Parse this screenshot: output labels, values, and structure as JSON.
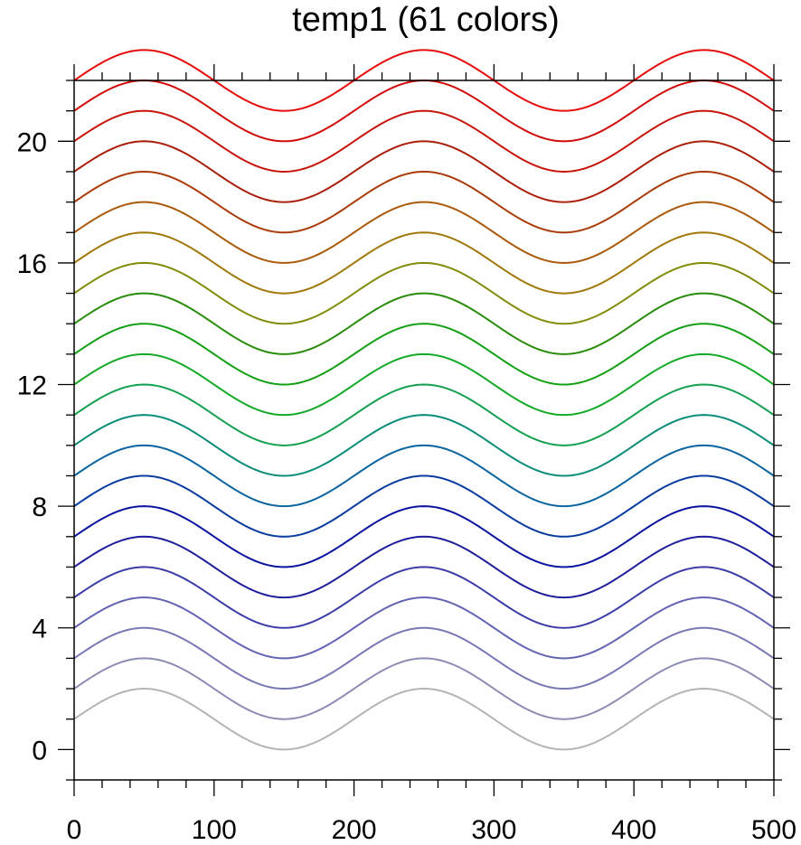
{
  "chart_data": {
    "type": "line",
    "title": "temp1 (61 colors)",
    "xlabel": "",
    "ylabel": "",
    "xlim": [
      0,
      500
    ],
    "ylim": [
      -1,
      22
    ],
    "grid": false,
    "x_ticks": [
      0,
      100,
      200,
      300,
      400,
      500
    ],
    "y_ticks": [
      0,
      4,
      8,
      12,
      16,
      20
    ],
    "x_minor_step": 20,
    "y_minor_step": 1,
    "curve_formula": "y = offset + sin(2*pi*(x - 0)/200) ; peaks at x=50,250,450, troughs at x=150,350",
    "amplitude": 1,
    "period": 200,
    "series": [
      {
        "offset": 1,
        "color": "#b4b4b4"
      },
      {
        "offset": 2,
        "color": "#8c8cb4"
      },
      {
        "offset": 3,
        "color": "#7878b4"
      },
      {
        "offset": 4,
        "color": "#6464b4"
      },
      {
        "offset": 5,
        "color": "#3c3ca8"
      },
      {
        "offset": 6,
        "color": "#1e1e9c"
      },
      {
        "offset": 7,
        "color": "#0a14a0"
      },
      {
        "offset": 8,
        "color": "#0a3ca0"
      },
      {
        "offset": 9,
        "color": "#0a64a0"
      },
      {
        "offset": 10,
        "color": "#0a8c78"
      },
      {
        "offset": 11,
        "color": "#14a050"
      },
      {
        "offset": 12,
        "color": "#14aa28"
      },
      {
        "offset": 13,
        "color": "#14a014"
      },
      {
        "offset": 14,
        "color": "#288c0a"
      },
      {
        "offset": 15,
        "color": "#828c0a"
      },
      {
        "offset": 16,
        "color": "#a0780a"
      },
      {
        "offset": 17,
        "color": "#aa5a0a"
      },
      {
        "offset": 18,
        "color": "#aa3c0a"
      },
      {
        "offset": 19,
        "color": "#aa1e0a"
      },
      {
        "offset": 20,
        "color": "#c8140a"
      },
      {
        "offset": 21,
        "color": "#d20a0a"
      },
      {
        "offset": 22,
        "color": "#e60a0a"
      }
    ]
  }
}
